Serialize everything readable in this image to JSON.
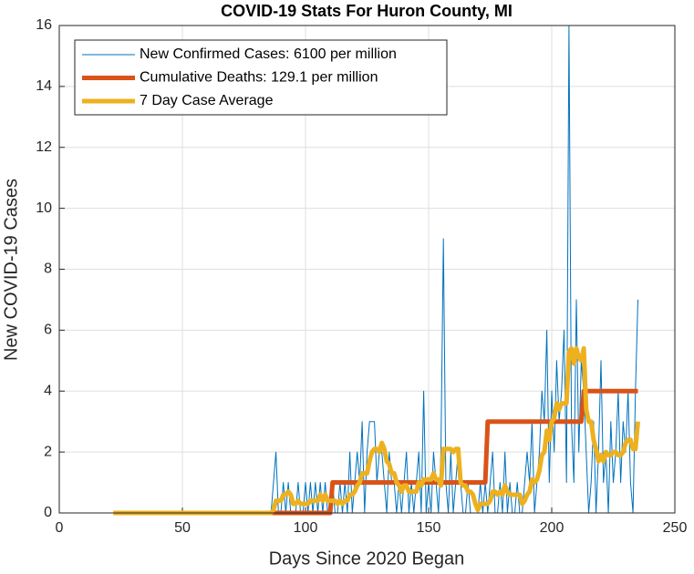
{
  "chart_data": {
    "type": "line",
    "title": "COVID-19 Stats For Huron County, MI",
    "xlabel": "Days Since 2020 Began",
    "ylabel": "New COVID-19 Cases",
    "xlim": [
      0,
      250
    ],
    "xticks": [
      0,
      50,
      100,
      150,
      200,
      250
    ],
    "ylim": [
      0,
      16
    ],
    "yticks": [
      0,
      2,
      4,
      6,
      8,
      10,
      12,
      14,
      16
    ],
    "grid": true,
    "legend": "upper left",
    "x": [
      22,
      23,
      24,
      25,
      26,
      27,
      28,
      29,
      30,
      31,
      32,
      33,
      34,
      35,
      36,
      37,
      38,
      39,
      40,
      41,
      42,
      43,
      44,
      45,
      46,
      47,
      48,
      49,
      50,
      51,
      52,
      53,
      54,
      55,
      56,
      57,
      58,
      59,
      60,
      61,
      62,
      63,
      64,
      65,
      66,
      67,
      68,
      69,
      70,
      71,
      72,
      73,
      74,
      75,
      76,
      77,
      78,
      79,
      80,
      81,
      82,
      83,
      84,
      85,
      86,
      87,
      88,
      89,
      90,
      91,
      92,
      93,
      94,
      95,
      96,
      97,
      98,
      99,
      100,
      101,
      102,
      103,
      104,
      105,
      106,
      107,
      108,
      109,
      110,
      111,
      112,
      113,
      114,
      115,
      116,
      117,
      118,
      119,
      120,
      121,
      122,
      123,
      124,
      125,
      126,
      127,
      128,
      129,
      130,
      131,
      132,
      133,
      134,
      135,
      136,
      137,
      138,
      139,
      140,
      141,
      142,
      143,
      144,
      145,
      146,
      147,
      148,
      149,
      150,
      151,
      152,
      153,
      154,
      155,
      156,
      157,
      158,
      159,
      160,
      161,
      162,
      163,
      164,
      165,
      166,
      167,
      168,
      169,
      170,
      171,
      172,
      173,
      174,
      175,
      176,
      177,
      178,
      179,
      180,
      181,
      182,
      183,
      184,
      185,
      186,
      187,
      188,
      189,
      190,
      191,
      192,
      193,
      194,
      195,
      196,
      197,
      198,
      199,
      200,
      201,
      202,
      203,
      204,
      205,
      206,
      207,
      208,
      209,
      210,
      211,
      212,
      213,
      214,
      215,
      216,
      217,
      218,
      219,
      220,
      221,
      222,
      223,
      224,
      225,
      226,
      227,
      228,
      229,
      230,
      231,
      232,
      233,
      234,
      235
    ],
    "series": [
      {
        "name": "New Confirmed Cases: 6100 per million",
        "color": "#0072BD",
        "width": 1,
        "values": [
          0,
          0,
          0,
          0,
          0,
          0,
          0,
          0,
          0,
          0,
          0,
          0,
          0,
          0,
          0,
          0,
          0,
          0,
          0,
          0,
          0,
          0,
          0,
          0,
          0,
          0,
          0,
          0,
          0,
          0,
          0,
          0,
          0,
          0,
          0,
          0,
          0,
          0,
          0,
          0,
          0,
          0,
          0,
          0,
          0,
          0,
          0,
          0,
          0,
          0,
          0,
          0,
          0,
          0,
          0,
          0,
          0,
          0,
          0,
          0,
          0,
          0,
          0,
          0,
          0,
          1,
          2,
          0,
          0,
          1,
          0,
          1,
          0,
          0,
          0,
          1,
          0,
          0,
          1,
          0,
          1,
          0,
          1,
          0,
          1,
          0,
          1,
          0,
          0,
          1,
          0,
          0,
          1,
          0,
          1,
          0,
          2,
          0,
          1,
          2,
          1,
          3,
          0,
          2,
          3,
          3,
          3,
          1,
          2,
          2,
          1,
          0,
          2,
          1,
          1,
          0,
          1,
          0,
          1,
          2,
          0,
          1,
          0,
          1,
          2,
          0,
          4,
          0,
          1,
          0,
          2,
          1,
          0,
          2,
          9,
          1,
          0,
          2,
          0,
          1,
          2,
          1,
          0,
          0,
          1,
          0,
          0,
          0,
          0,
          1,
          0,
          1,
          0,
          1,
          2,
          0,
          0,
          1,
          0,
          2,
          0,
          1,
          0,
          0,
          1,
          0,
          0,
          1,
          2,
          1,
          3,
          0,
          1,
          2,
          4,
          3,
          6,
          1,
          4,
          2,
          5,
          3,
          4,
          6,
          1,
          16,
          3,
          1,
          7,
          2,
          5,
          4,
          2,
          0,
          1,
          3,
          0,
          2,
          5,
          1,
          2,
          0,
          3,
          1,
          2,
          4,
          1,
          3,
          2,
          4,
          1,
          0,
          4,
          7
        ]
      },
      {
        "name": "Cumulative Deaths: 129.1 per million",
        "color": "#D95319",
        "width": 5,
        "values": [
          0,
          0,
          0,
          0,
          0,
          0,
          0,
          0,
          0,
          0,
          0,
          0,
          0,
          0,
          0,
          0,
          0,
          0,
          0,
          0,
          0,
          0,
          0,
          0,
          0,
          0,
          0,
          0,
          0,
          0,
          0,
          0,
          0,
          0,
          0,
          0,
          0,
          0,
          0,
          0,
          0,
          0,
          0,
          0,
          0,
          0,
          0,
          0,
          0,
          0,
          0,
          0,
          0,
          0,
          0,
          0,
          0,
          0,
          0,
          0,
          0,
          0,
          0,
          0,
          0,
          0,
          0,
          0,
          0,
          0,
          0,
          0,
          0,
          0,
          0,
          0,
          0,
          0,
          0,
          0,
          0,
          0,
          0,
          0,
          0,
          0,
          0,
          0,
          0,
          1,
          1,
          1,
          1,
          1,
          1,
          1,
          1,
          1,
          1,
          1,
          1,
          1,
          1,
          1,
          1,
          1,
          1,
          1,
          1,
          1,
          1,
          1,
          1,
          1,
          1,
          1,
          1,
          1,
          1,
          1,
          1,
          1,
          1,
          1,
          1,
          1,
          1,
          1,
          1,
          1,
          1,
          1,
          1,
          1,
          1,
          1,
          1,
          1,
          1,
          1,
          1,
          1,
          1,
          1,
          1,
          1,
          1,
          1,
          1,
          1,
          1,
          1,
          3,
          3,
          3,
          3,
          3,
          3,
          3,
          3,
          3,
          3,
          3,
          3,
          3,
          3,
          3,
          3,
          3,
          3,
          3,
          3,
          3,
          3,
          3,
          3,
          3,
          3,
          3,
          3,
          3,
          3,
          3,
          3,
          3,
          3,
          3,
          3,
          3,
          3,
          3,
          4,
          4,
          4,
          4,
          4,
          4,
          4,
          4,
          4,
          4,
          4,
          4,
          4,
          4,
          4,
          4,
          4,
          4,
          4,
          4,
          4,
          4,
          4
        ]
      },
      {
        "name": "7 Day Case Average",
        "color": "#EDB120",
        "width": 5,
        "values": [
          0,
          0,
          0,
          0,
          0,
          0,
          0,
          0,
          0,
          0,
          0,
          0,
          0,
          0,
          0,
          0,
          0,
          0,
          0,
          0,
          0,
          0,
          0,
          0,
          0,
          0,
          0,
          0,
          0,
          0,
          0,
          0,
          0,
          0,
          0,
          0,
          0,
          0,
          0,
          0,
          0,
          0,
          0,
          0,
          0,
          0,
          0,
          0,
          0,
          0,
          0,
          0,
          0,
          0,
          0,
          0,
          0,
          0,
          0,
          0,
          0,
          0,
          0,
          0,
          0,
          0.1,
          0.4,
          0.4,
          0.4,
          0.6,
          0.6,
          0.7,
          0.6,
          0.3,
          0.3,
          0.4,
          0.3,
          0.3,
          0.3,
          0.3,
          0.4,
          0.4,
          0.4,
          0.4,
          0.6,
          0.4,
          0.6,
          0.4,
          0.4,
          0.4,
          0.4,
          0.3,
          0.4,
          0.3,
          0.4,
          0.4,
          0.6,
          0.6,
          0.7,
          0.9,
          1.0,
          1.3,
          1.3,
          1.3,
          1.7,
          2.0,
          2.1,
          2.1,
          2.0,
          2.3,
          2.1,
          1.7,
          1.6,
          1.3,
          1.3,
          1.0,
          0.9,
          0.7,
          0.9,
          0.9,
          0.7,
          0.7,
          0.7,
          0.7,
          1.0,
          0.9,
          1.1,
          1.1,
          1.1,
          1.1,
          1.3,
          1.1,
          1.1,
          0.9,
          2.1,
          2.1,
          2.1,
          2.1,
          2.0,
          2.1,
          2.1,
          1.0,
          0.9,
          0.9,
          0.7,
          0.7,
          0.6,
          0.3,
          0.1,
          0.3,
          0.3,
          0.3,
          0.3,
          0.4,
          0.7,
          0.7,
          0.6,
          0.7,
          0.6,
          0.9,
          0.7,
          0.6,
          0.6,
          0.6,
          0.6,
          0.6,
          0.3,
          0.4,
          0.6,
          0.7,
          1.1,
          1.0,
          1.1,
          1.4,
          1.9,
          2.0,
          2.7,
          2.4,
          3.0,
          3.1,
          3.6,
          3.4,
          3.6,
          3.6,
          3.6,
          5.3,
          5.4,
          4.9,
          5.4,
          5.1,
          5.0,
          5.4,
          3.4,
          3.0,
          3.0,
          2.4,
          2.1,
          1.7,
          1.9,
          1.7,
          2.0,
          1.9,
          1.9,
          2.0,
          2.0,
          1.9,
          1.9,
          2.0,
          2.3,
          2.4,
          2.4,
          2.1,
          2.1,
          3.0
        ]
      }
    ]
  }
}
